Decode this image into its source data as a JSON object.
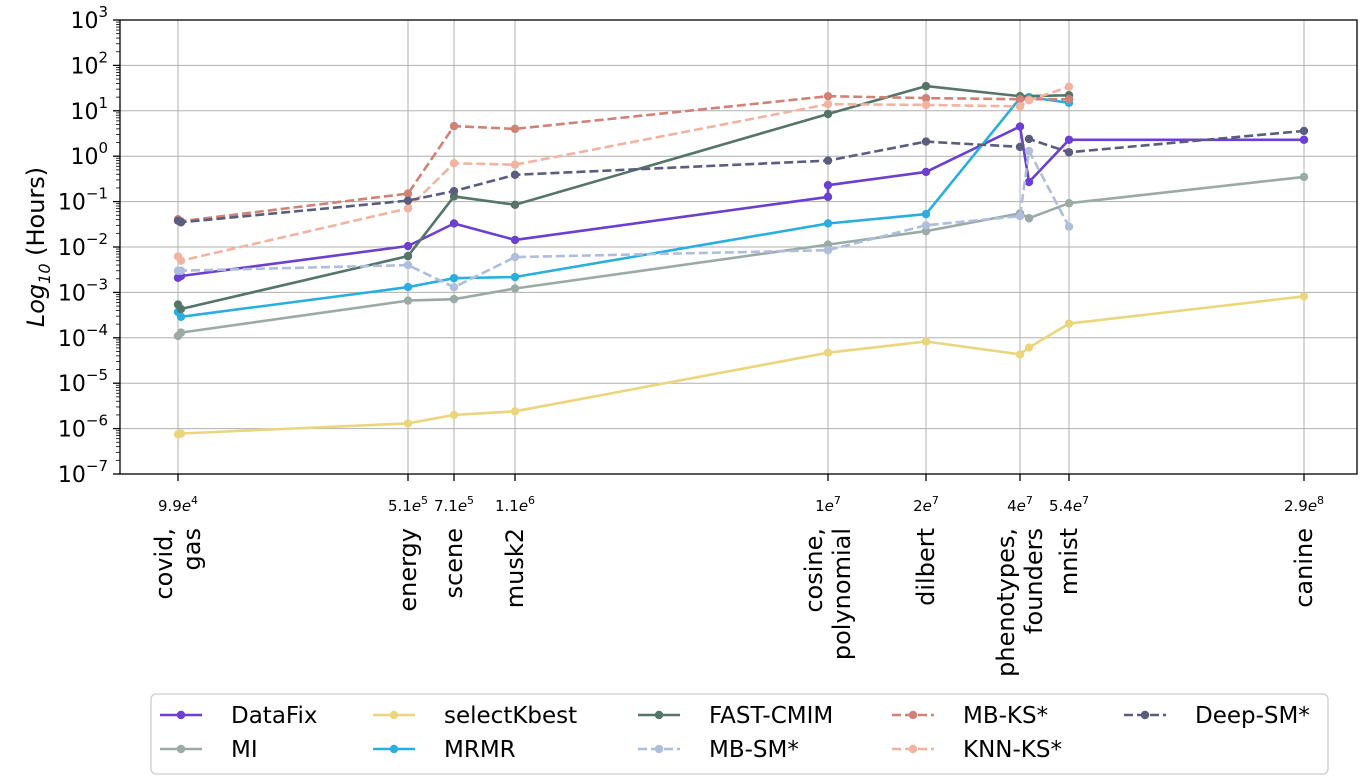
{
  "chart_data": {
    "type": "line",
    "title": "",
    "ylabel": "Log10 (Hours)",
    "ylabel_parts": {
      "main": "Log",
      "sub": "10",
      "rest": " (Hours)"
    },
    "xlabel": "",
    "yscale": "log",
    "ylim_exp": [
      -7,
      3
    ],
    "y_ticks": [
      {
        "exp": -7,
        "base": "10",
        "sup": "−7"
      },
      {
        "exp": -6,
        "base": "10",
        "sup": "−6"
      },
      {
        "exp": -5,
        "base": "10",
        "sup": "−5"
      },
      {
        "exp": -4,
        "base": "10",
        "sup": "−4"
      },
      {
        "exp": -3,
        "base": "10",
        "sup": "−3"
      },
      {
        "exp": -2,
        "base": "10",
        "sup": "−2"
      },
      {
        "exp": -1,
        "base": "10",
        "sup": "−1"
      },
      {
        "exp": 0,
        "base": "10",
        "sup": "0"
      },
      {
        "exp": 1,
        "base": "10",
        "sup": "1"
      },
      {
        "exp": 2,
        "base": "10",
        "sup": "2"
      },
      {
        "exp": 3,
        "base": "10",
        "sup": "3"
      }
    ],
    "grid": true,
    "x_groups": [
      {
        "base": "9.9",
        "sup": "4",
        "datasets": [
          "covid,",
          "gas"
        ]
      },
      {
        "base": "5.1",
        "sup": "5",
        "datasets": [
          "energy"
        ]
      },
      {
        "base": "7.1",
        "sup": "5",
        "datasets": [
          "scene"
        ]
      },
      {
        "base": "1.1",
        "sup": "6",
        "datasets": [
          "musk2"
        ]
      },
      {
        "base": "1",
        "sup": "7",
        "datasets": [
          "cosine,",
          "polynomial"
        ]
      },
      {
        "base": "2",
        "sup": "7",
        "datasets": [
          "dilbert"
        ]
      },
      {
        "base": "4",
        "sup": "7",
        "datasets": [
          "phenotypes,",
          "founders"
        ]
      },
      {
        "base": "5.4",
        "sup": "7",
        "datasets": [
          "mnist"
        ]
      },
      {
        "base": "2.9",
        "sup": "8",
        "datasets": [
          "canine"
        ]
      }
    ],
    "legend_location": "bottom-center",
    "series": [
      {
        "name": "DataFix",
        "color": "#6a3fd1",
        "dash": false,
        "points": [
          [
            0,
            0.0021
          ],
          [
            0.02,
            0.0023
          ],
          [
            1,
            0.0105
          ],
          [
            2,
            0.033
          ],
          [
            3,
            0.0143
          ],
          [
            4,
            0.127
          ],
          [
            4,
            0.23
          ],
          [
            5,
            0.45
          ],
          [
            6,
            4.5
          ],
          [
            6.12,
            0.27
          ],
          [
            7,
            2.3
          ],
          [
            8,
            2.3
          ]
        ]
      },
      {
        "name": "MI",
        "color": "#9aaba5",
        "dash": false,
        "points": [
          [
            0,
            0.00011
          ],
          [
            0.02,
            0.00013
          ],
          [
            1,
            0.00066
          ],
          [
            2,
            0.00071
          ],
          [
            3,
            0.00122
          ],
          [
            4,
            0.0113
          ],
          [
            5,
            0.0224
          ],
          [
            6,
            0.055
          ],
          [
            6.12,
            0.043
          ],
          [
            7,
            0.092
          ],
          [
            8,
            0.35
          ]
        ]
      },
      {
        "name": "selectKbest",
        "color": "#ebd67e",
        "dash": false,
        "points": [
          [
            0,
            7.5e-07
          ],
          [
            0.02,
            7.8e-07
          ],
          [
            1,
            1.3e-06
          ],
          [
            2,
            2e-06
          ],
          [
            3,
            2.4e-06
          ],
          [
            4,
            4.7e-05
          ],
          [
            5,
            8.3e-05
          ],
          [
            6,
            4.3e-05
          ],
          [
            6.12,
            6.1e-05
          ],
          [
            7,
            0.000205
          ],
          [
            8,
            0.00082
          ]
        ]
      },
      {
        "name": "MRMR",
        "color": "#29aee1",
        "dash": false,
        "points": [
          [
            0,
            0.00037
          ],
          [
            0.02,
            0.00029
          ],
          [
            1,
            0.00131
          ],
          [
            2,
            0.00206
          ],
          [
            3,
            0.00218
          ],
          [
            4,
            0.033
          ],
          [
            5,
            0.053
          ],
          [
            6,
            19
          ],
          [
            6.12,
            20
          ],
          [
            7,
            15
          ]
        ]
      },
      {
        "name": "FAST-CMIM",
        "color": "#547568",
        "dash": false,
        "points": [
          [
            0,
            0.00054
          ],
          [
            0.02,
            0.00043
          ],
          [
            1,
            0.0063
          ],
          [
            2,
            0.13
          ],
          [
            3,
            0.085
          ],
          [
            4,
            8.5
          ],
          [
            5,
            35
          ],
          [
            6,
            21
          ],
          [
            7,
            22
          ]
        ]
      },
      {
        "name": "MB-SM*",
        "color": "#aebedb",
        "dash": true,
        "points": [
          [
            0,
            0.003
          ],
          [
            0.02,
            0.003
          ],
          [
            1,
            0.004
          ],
          [
            2,
            0.0013
          ],
          [
            3,
            0.006
          ],
          [
            4,
            0.0085
          ],
          [
            5,
            0.03
          ],
          [
            6,
            0.048
          ],
          [
            6.12,
            1.3
          ],
          [
            7,
            0.028
          ]
        ]
      },
      {
        "name": "MB-KS*",
        "color": "#cf8275",
        "dash": true,
        "points": [
          [
            0,
            0.041
          ],
          [
            0.02,
            0.037
          ],
          [
            1,
            0.15
          ],
          [
            2,
            4.6
          ],
          [
            3,
            4
          ],
          [
            4,
            21
          ],
          [
            5,
            19
          ],
          [
            6,
            18
          ],
          [
            6.12,
            18
          ],
          [
            7,
            18
          ]
        ]
      },
      {
        "name": "KNN-KS*",
        "color": "#f2b3a1",
        "dash": true,
        "points": [
          [
            0,
            0.0062
          ],
          [
            0.02,
            0.005
          ],
          [
            1,
            0.071
          ],
          [
            2,
            0.7
          ],
          [
            3,
            0.65
          ],
          [
            4,
            14
          ],
          [
            5,
            13.5
          ],
          [
            6,
            12.5
          ],
          [
            6.12,
            17
          ],
          [
            7,
            34
          ]
        ]
      },
      {
        "name": "Deep-SM*",
        "color": "#5a5d7d",
        "dash": true,
        "points": [
          [
            0,
            0.038
          ],
          [
            0.02,
            0.035
          ],
          [
            1,
            0.105
          ],
          [
            2,
            0.17
          ],
          [
            3,
            0.39
          ],
          [
            4,
            0.8
          ],
          [
            5,
            2.1
          ],
          [
            6,
            1.6
          ],
          [
            6.12,
            2.4
          ],
          [
            7,
            1.22
          ],
          [
            8,
            3.6
          ]
        ]
      }
    ]
  }
}
